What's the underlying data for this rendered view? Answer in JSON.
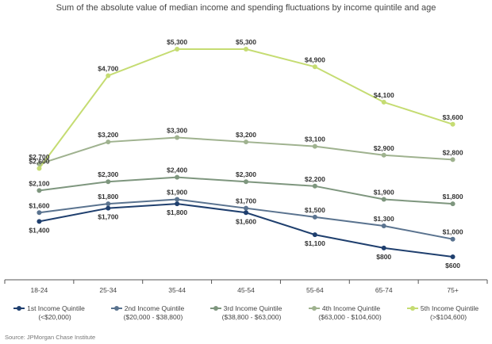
{
  "chart_data": {
    "type": "line",
    "title": "Sum of the absolute value of median income and spending fluctuations by income quintile and age",
    "categories": [
      "18-24",
      "25-34",
      "35-44",
      "45-54",
      "55-64",
      "65-74",
      "75+"
    ],
    "ylim": [
      0,
      5600
    ],
    "grid": false,
    "legend_placement": "bottom",
    "series": [
      {
        "name": "1st Income Quintile",
        "range": "(<$20,000)",
        "color": "#1f3f6e",
        "values": [
          1400,
          1700,
          1800,
          1600,
          1100,
          800,
          600
        ],
        "labels": [
          "$1,400",
          "$1,700",
          "$1,800",
          "$1,600",
          "$1,100",
          "$800",
          "$600"
        ],
        "label_pos": [
          "below",
          "below",
          "below",
          "below",
          "below",
          "below",
          "below"
        ]
      },
      {
        "name": "2nd Income Quintile",
        "range": "($20,000 - $38,800)",
        "color": "#5a738f",
        "values": [
          1600,
          1800,
          1900,
          1700,
          1500,
          1300,
          1000
        ],
        "labels": [
          "$1,600",
          "$1,800",
          "$1,900",
          "$1,700",
          "$1,500",
          "$1,300",
          "$1,000"
        ],
        "label_pos": [
          "above",
          "above",
          "above",
          "above",
          "above",
          "above",
          "above"
        ]
      },
      {
        "name": "3rd Income Quintile",
        "range": "($38,800 - $63,000)",
        "color": "#7e967e",
        "values": [
          2100,
          2300,
          2400,
          2300,
          2200,
          1900,
          1800
        ],
        "labels": [
          "$2,100",
          "$2,300",
          "$2,400",
          "$2,300",
          "$2,200",
          "$1,900",
          "$1,800"
        ],
        "label_pos": [
          "above",
          "above",
          "above",
          "above",
          "above",
          "above",
          "above"
        ]
      },
      {
        "name": "4th Income Quintile",
        "range": "($63,000 - $104,600)",
        "color": "#9fb28f",
        "values": [
          2700,
          3200,
          3300,
          3200,
          3100,
          2900,
          2800
        ],
        "labels": [
          "$2,700",
          "$3,200",
          "$3,300",
          "$3,200",
          "$3,100",
          "$2,900",
          "$2,800"
        ],
        "label_pos": [
          "above",
          "above",
          "above",
          "above",
          "above",
          "above",
          "above"
        ]
      },
      {
        "name": "5th Income Quintile",
        "range": "(>$104,600)",
        "color": "#c5dc72",
        "values": [
          2600,
          4700,
          5300,
          5300,
          4900,
          4100,
          3600
        ],
        "labels": [
          "$2,600",
          "$4,700",
          "$5,300",
          "$5,300",
          "$4,900",
          "$4,100",
          "$3,600"
        ],
        "label_pos": [
          "above",
          "above",
          "above",
          "above",
          "above",
          "above",
          "above"
        ]
      }
    ]
  },
  "source": "Source: JPMorgan Chase Institute"
}
